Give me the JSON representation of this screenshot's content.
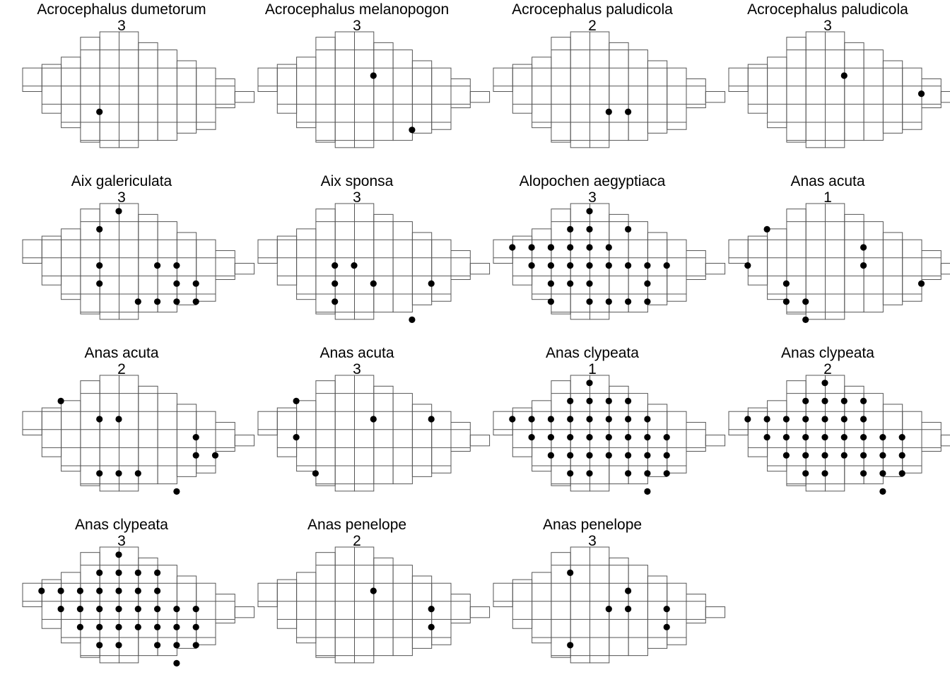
{
  "colors": {
    "grid": "#555555",
    "point": "#000000",
    "background": "#ffffff"
  },
  "grid_columns": [
    "c1",
    "c2",
    "c3",
    "c4",
    "c5",
    "c6",
    "c7",
    "c8",
    "c9",
    "c10",
    "c11",
    "c12"
  ],
  "panels": [
    {
      "species": "Acrocephalus dumetorum",
      "code": "3",
      "points": [
        [
          4,
          4
        ]
      ]
    },
    {
      "species": "Acrocephalus melanopogon",
      "code": "3",
      "points": [
        [
          6,
          2
        ],
        [
          8,
          5
        ]
      ]
    },
    {
      "species": "Acrocephalus paludicola",
      "code": "2",
      "points": [
        [
          6,
          4
        ],
        [
          7,
          4
        ]
      ]
    },
    {
      "species": "Acrocephalus paludicola",
      "code": "3",
      "points": [
        [
          6,
          2
        ],
        [
          10,
          3
        ]
      ]
    },
    {
      "species": "Aix galericulata",
      "code": "3",
      "points": [
        [
          4,
          1
        ],
        [
          5,
          0
        ],
        [
          4,
          3
        ],
        [
          4,
          4
        ],
        [
          7,
          3
        ],
        [
          8,
          3
        ],
        [
          8,
          4
        ],
        [
          9,
          4
        ],
        [
          6,
          5
        ],
        [
          7,
          5
        ],
        [
          8,
          5
        ],
        [
          9,
          5
        ]
      ]
    },
    {
      "species": "Aix sponsa",
      "code": "3",
      "points": [
        [
          4,
          3
        ],
        [
          5,
          3
        ],
        [
          4,
          4
        ],
        [
          4,
          5
        ],
        [
          6,
          4
        ],
        [
          9,
          4
        ],
        [
          8,
          6
        ]
      ]
    },
    {
      "species": "Alopochen aegyptiaca",
      "code": "3",
      "points": [
        [
          1,
          2
        ],
        [
          2,
          2
        ],
        [
          3,
          2
        ],
        [
          4,
          1
        ],
        [
          5,
          0
        ],
        [
          5,
          1
        ],
        [
          2,
          3
        ],
        [
          3,
          2
        ],
        [
          4,
          2
        ],
        [
          5,
          2
        ],
        [
          6,
          2
        ],
        [
          7,
          1
        ],
        [
          3,
          3
        ],
        [
          4,
          3
        ],
        [
          5,
          3
        ],
        [
          6,
          3
        ],
        [
          7,
          3
        ],
        [
          3,
          4
        ],
        [
          4,
          4
        ],
        [
          5,
          4
        ],
        [
          8,
          3
        ],
        [
          9,
          3
        ],
        [
          8,
          4
        ],
        [
          3,
          5
        ],
        [
          5,
          5
        ],
        [
          6,
          5
        ],
        [
          7,
          5
        ],
        [
          8,
          5
        ]
      ]
    },
    {
      "species": "Anas acuta",
      "code": "1",
      "points": [
        [
          2,
          1
        ],
        [
          1,
          3
        ],
        [
          3,
          4
        ],
        [
          3,
          5
        ],
        [
          4,
          5
        ],
        [
          4,
          6
        ],
        [
          7,
          2
        ],
        [
          7,
          3
        ],
        [
          10,
          4
        ]
      ]
    },
    {
      "species": "Anas acuta",
      "code": "2",
      "points": [
        [
          2,
          1
        ],
        [
          4,
          2
        ],
        [
          5,
          2
        ],
        [
          9,
          4
        ],
        [
          10,
          4
        ],
        [
          9,
          3
        ],
        [
          4,
          5
        ],
        [
          5,
          5
        ],
        [
          6,
          5
        ],
        [
          8,
          6
        ]
      ]
    },
    {
      "species": "Anas acuta",
      "code": "3",
      "points": [
        [
          2,
          1
        ],
        [
          6,
          2
        ],
        [
          9,
          2
        ],
        [
          2,
          3
        ],
        [
          3,
          5
        ]
      ]
    },
    {
      "species": "Anas clypeata",
      "code": "1",
      "points": [
        [
          1,
          2
        ],
        [
          2,
          2
        ],
        [
          3,
          2
        ],
        [
          4,
          1
        ],
        [
          5,
          0
        ],
        [
          5,
          1
        ],
        [
          6,
          1
        ],
        [
          7,
          1
        ],
        [
          2,
          3
        ],
        [
          3,
          3
        ],
        [
          4,
          2
        ],
        [
          5,
          2
        ],
        [
          6,
          2
        ],
        [
          7,
          2
        ],
        [
          8,
          2
        ],
        [
          3,
          4
        ],
        [
          4,
          3
        ],
        [
          5,
          3
        ],
        [
          6,
          3
        ],
        [
          7,
          3
        ],
        [
          8,
          3
        ],
        [
          9,
          3
        ],
        [
          4,
          4
        ],
        [
          5,
          4
        ],
        [
          6,
          4
        ],
        [
          7,
          4
        ],
        [
          8,
          4
        ],
        [
          9,
          4
        ],
        [
          4,
          5
        ],
        [
          5,
          5
        ],
        [
          7,
          5
        ],
        [
          8,
          5
        ],
        [
          9,
          5
        ],
        [
          8,
          6
        ]
      ]
    },
    {
      "species": "Anas clypeata",
      "code": "2",
      "points": [
        [
          1,
          2
        ],
        [
          2,
          2
        ],
        [
          3,
          2
        ],
        [
          4,
          1
        ],
        [
          5,
          0
        ],
        [
          5,
          1
        ],
        [
          6,
          1
        ],
        [
          7,
          1
        ],
        [
          2,
          3
        ],
        [
          3,
          3
        ],
        [
          4,
          2
        ],
        [
          5,
          2
        ],
        [
          6,
          2
        ],
        [
          7,
          2
        ],
        [
          3,
          4
        ],
        [
          4,
          3
        ],
        [
          5,
          3
        ],
        [
          6,
          3
        ],
        [
          7,
          3
        ],
        [
          8,
          3
        ],
        [
          9,
          3
        ],
        [
          4,
          4
        ],
        [
          5,
          4
        ],
        [
          6,
          4
        ],
        [
          7,
          4
        ],
        [
          8,
          4
        ],
        [
          9,
          4
        ],
        [
          4,
          5
        ],
        [
          5,
          5
        ],
        [
          7,
          5
        ],
        [
          8,
          5
        ],
        [
          9,
          5
        ],
        [
          8,
          6
        ]
      ]
    },
    {
      "species": "Anas clypeata",
      "code": "3",
      "points": [
        [
          1,
          2
        ],
        [
          2,
          2
        ],
        [
          3,
          2
        ],
        [
          4,
          1
        ],
        [
          5,
          0
        ],
        [
          5,
          1
        ],
        [
          6,
          1
        ],
        [
          7,
          1
        ],
        [
          2,
          3
        ],
        [
          3,
          3
        ],
        [
          4,
          2
        ],
        [
          5,
          2
        ],
        [
          6,
          2
        ],
        [
          7,
          2
        ],
        [
          3,
          4
        ],
        [
          4,
          3
        ],
        [
          5,
          3
        ],
        [
          6,
          3
        ],
        [
          7,
          3
        ],
        [
          8,
          3
        ],
        [
          9,
          3
        ],
        [
          4,
          4
        ],
        [
          5,
          4
        ],
        [
          6,
          4
        ],
        [
          7,
          4
        ],
        [
          8,
          4
        ],
        [
          9,
          4
        ],
        [
          4,
          5
        ],
        [
          5,
          5
        ],
        [
          7,
          5
        ],
        [
          8,
          5
        ],
        [
          9,
          5
        ],
        [
          8,
          6
        ]
      ]
    },
    {
      "species": "Anas penelope",
      "code": "2",
      "points": [
        [
          6,
          2
        ],
        [
          9,
          3
        ],
        [
          9,
          4
        ]
      ]
    },
    {
      "species": "Anas penelope",
      "code": "3",
      "points": [
        [
          4,
          1
        ],
        [
          4,
          5
        ],
        [
          6,
          3
        ],
        [
          7,
          2
        ],
        [
          7,
          3
        ],
        [
          9,
          3
        ],
        [
          9,
          4
        ]
      ]
    }
  ]
}
